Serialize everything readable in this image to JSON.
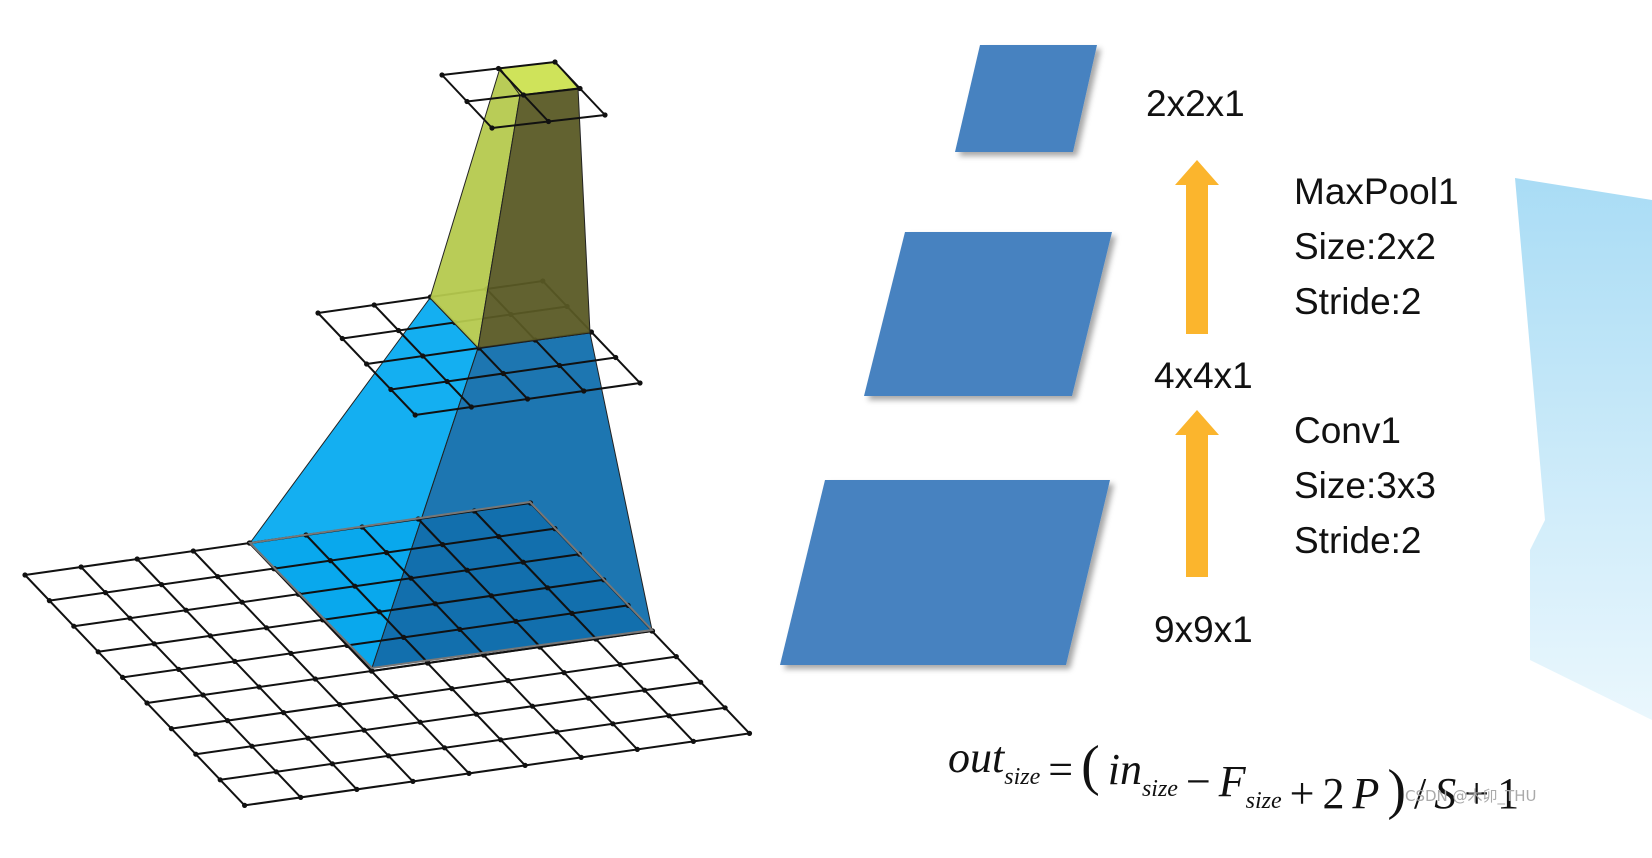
{
  "labels": {
    "top_shape": "2x2x1",
    "middle_shape": "4x4x1",
    "bottom_shape": "9x9x1"
  },
  "pool_step": {
    "name": "MaxPool1",
    "size": "Size:2x2",
    "stride": "Stride:2"
  },
  "conv_step": {
    "name": "Conv1",
    "size": "Size:3x3",
    "stride": "Stride:2"
  },
  "formula": [
    {
      "text": "out",
      "sub": "size",
      "italic": true
    },
    {
      "text": "="
    },
    {
      "text": "("
    },
    {
      "text": "in",
      "sub": "size",
      "italic": true
    },
    {
      "text": "−"
    },
    {
      "text": "F",
      "sub": "size",
      "italic": true
    },
    {
      "text": "+"
    },
    {
      "text": "2"
    },
    {
      "text": "P",
      "italic": true
    },
    {
      "text": ")"
    },
    {
      "text": "/"
    },
    {
      "text": "S",
      "italic": true
    },
    {
      "text": "+"
    },
    {
      "text": "1"
    }
  ],
  "watermark": "CSDN @木卯_THU"
}
